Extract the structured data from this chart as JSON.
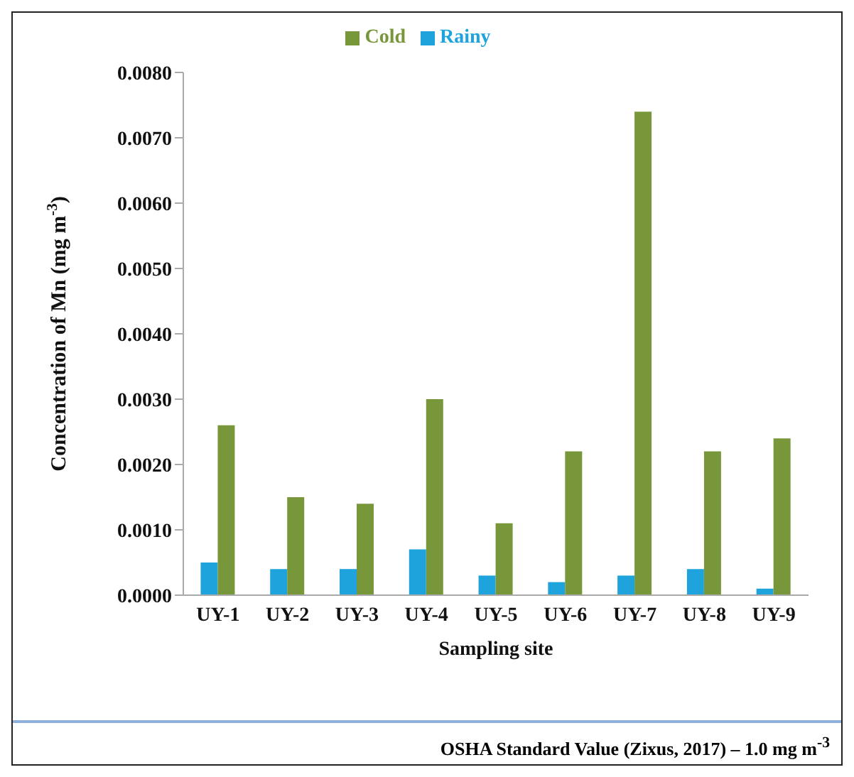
{
  "chart_data": {
    "type": "bar",
    "xlabel": "Sampling site",
    "ylabel": "Concentration of Mn (mg m$^{-3}$)",
    "categories": [
      "UY-1",
      "UY-2",
      "UY-3",
      "UY-4",
      "UY-5",
      "UY-6",
      "UY-7",
      "UY-8",
      "UY-9"
    ],
    "series": [
      {
        "name": "Rainy",
        "color": "#1fa3dc",
        "values": [
          0.0005,
          0.0004,
          0.0004,
          0.0007,
          0.0003,
          0.0002,
          0.0003,
          0.0004,
          0.0001
        ]
      },
      {
        "name": "Cold",
        "color": "#78973a",
        "values": [
          0.0026,
          0.0015,
          0.0014,
          0.003,
          0.0011,
          0.0022,
          0.0074,
          0.0022,
          0.0024
        ]
      }
    ],
    "ylim": [
      0,
      0.008
    ],
    "yticks": [
      {
        "value": 0,
        "label": "0.0000"
      },
      {
        "value": 0.001,
        "label": "0.0010"
      },
      {
        "value": 0.002,
        "label": "0.0020"
      },
      {
        "value": 0.003,
        "label": "0.0030"
      },
      {
        "value": 0.004,
        "label": "0.0040"
      },
      {
        "value": 0.005,
        "label": "0.0050"
      },
      {
        "value": 0.006,
        "label": "0.0060"
      },
      {
        "value": 0.007,
        "label": "0.0070"
      },
      {
        "value": 0.008,
        "label": "0.0080"
      }
    ],
    "grid": false,
    "legend": "top",
    "annotations": [
      "OSHA Standard Value (Zixus, 2017) – 1.0 mg m$^{-3}$"
    ]
  }
}
